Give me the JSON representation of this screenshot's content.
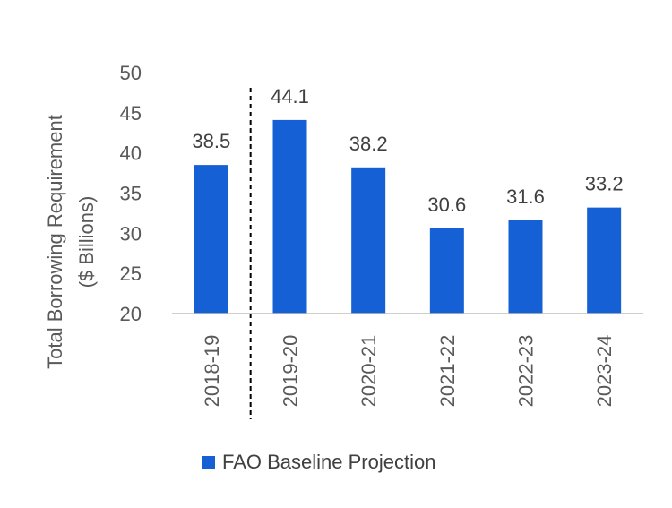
{
  "chart_data": {
    "type": "bar",
    "categories": [
      "2018-19",
      "2019-20",
      "2020-21",
      "2021-22",
      "2022-23",
      "2023-24"
    ],
    "series": [
      {
        "name": "FAO Baseline Projection",
        "values": [
          38.5,
          44.1,
          38.2,
          30.6,
          31.6,
          33.2
        ]
      }
    ],
    "data_labels": [
      "38.5",
      "44.1",
      "38.2",
      "30.6",
      "31.6",
      "33.2"
    ],
    "ylabel_line1": "Total Borrowing Requirement",
    "ylabel_line2": "($ Billions)",
    "ylim": [
      20,
      50
    ],
    "yticks": [
      "20",
      "25",
      "30",
      "35",
      "40",
      "45",
      "50"
    ],
    "grid": false,
    "legend_position": "bottom",
    "bar_color": "#1560d4",
    "axis_color": "#bfbfbf",
    "divider_after_category": "2018-19"
  }
}
